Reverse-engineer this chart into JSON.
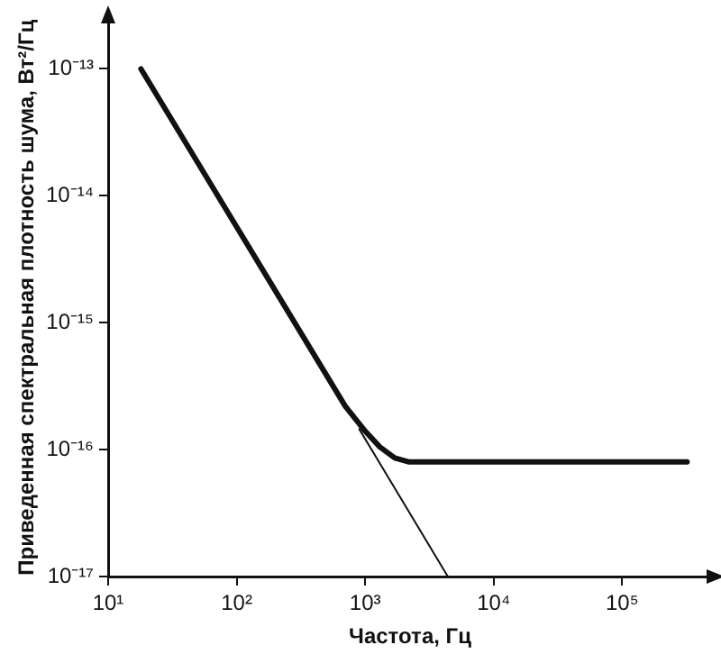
{
  "chart_data": {
    "type": "line",
    "xlabel": "Частота, Гц",
    "ylabel": "Приведенная спектральная плотность шума, Вт²/Гц",
    "log": "xy",
    "grid": false,
    "legend": false,
    "marker": "none",
    "line_style": "solid",
    "xlim": [
      10,
      500000
    ],
    "ylim": [
      1e-17,
      2.5e-13
    ],
    "xticks": [
      {
        "value": 10,
        "label": "10¹"
      },
      {
        "value": 100,
        "label": "10²"
      },
      {
        "value": 1000,
        "label": "10³"
      },
      {
        "value": 10000,
        "label": "10⁴"
      },
      {
        "value": 100000,
        "label": "10⁵"
      }
    ],
    "yticks": [
      {
        "value": 1e-17,
        "label": "10⁻¹⁷"
      },
      {
        "value": 1e-16,
        "label": "10⁻¹⁶"
      },
      {
        "value": 1e-15,
        "label": "10⁻¹⁵"
      },
      {
        "value": 1e-14,
        "label": "10⁻¹⁴"
      },
      {
        "value": 1e-13,
        "label": "10⁻¹³"
      }
    ],
    "series": [
      {
        "color": "#111111",
        "x": [
          18,
          700,
          1000,
          1300,
          1700,
          2200,
          320000
        ],
        "values": [
          1e-13,
          2.2e-16,
          1.4e-16,
          1.05e-16,
          8.6e-17,
          8e-17,
          8e-17
        ]
      },
      {
        "color": "#111111",
        "x": [
          900,
          4400
        ],
        "values": [
          1.45e-16,
          1e-17
        ]
      }
    ]
  }
}
